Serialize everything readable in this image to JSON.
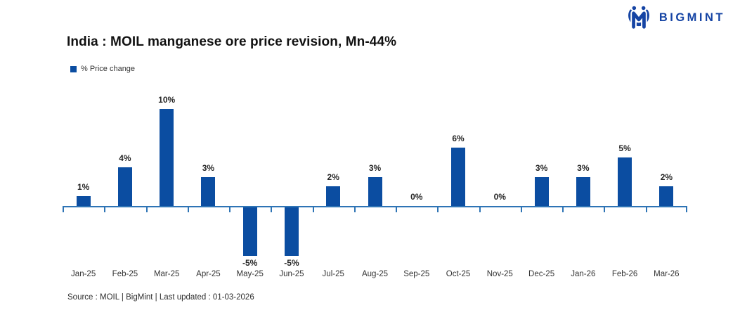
{
  "header": {
    "logo_text": "BIGMINT"
  },
  "legend": {
    "label": "% Price change"
  },
  "footer": {
    "source": "Source : MOIL | BigMint | Last updated : 01-03-2026"
  },
  "colors": {
    "bar": "#0b4da1",
    "axis": "#2e74b5",
    "logo": "#1544a4",
    "value_label": "#262626",
    "category_label": "#333333",
    "title": "#111111"
  },
  "chart_data": {
    "type": "bar",
    "title": "India : MOIL manganese ore price revision, Mn-44%",
    "series_name": "% Price change",
    "categories": [
      "Jan-25",
      "Feb-25",
      "Mar-25",
      "Apr-25",
      "May-25",
      "Jun-25",
      "Jul-25",
      "Aug-25",
      "Sep-25",
      "Oct-25",
      "Nov-25",
      "Dec-25",
      "Jan-26",
      "Feb-26",
      "Mar-26"
    ],
    "values": [
      1,
      4,
      10,
      3,
      -5,
      -5,
      2,
      3,
      0,
      6,
      0,
      3,
      3,
      5,
      2
    ],
    "data_labels": [
      "1%",
      "4%",
      "10%",
      "3%",
      "-5%",
      "-5%",
      "2%",
      "3%",
      "0%",
      "6%",
      "0%",
      "3%",
      "3%",
      "5%",
      "2%"
    ],
    "unit": "%",
    "xlabel": "",
    "ylabel": "",
    "ylim": [
      -6,
      11
    ],
    "grid": false,
    "legend_position": "top-left",
    "data_labels_shown": true
  }
}
